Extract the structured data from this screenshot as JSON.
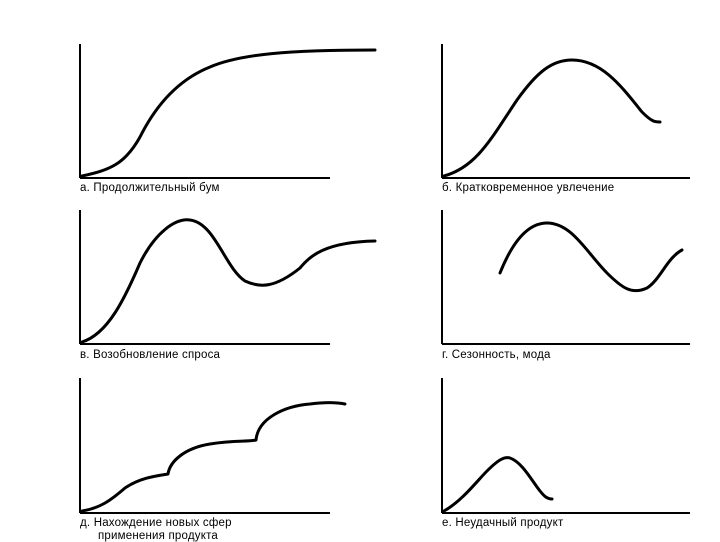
{
  "panels": [
    {
      "id": "a",
      "caption_lines": [
        "а. Продолжительный бум"
      ],
      "shape": "long-boom"
    },
    {
      "id": "b",
      "caption_lines": [
        "б. Кратковременное увлечение"
      ],
      "shape": "short-fad"
    },
    {
      "id": "c",
      "caption_lines": [
        "в. Возобновление спроса"
      ],
      "shape": "renewed-demand"
    },
    {
      "id": "d",
      "caption_lines": [
        "г. Сезонность, мода"
      ],
      "shape": "seasonality"
    },
    {
      "id": "e",
      "caption_lines": [
        "д. Нахождение новых сфер",
        "применения продукта"
      ],
      "shape": "new-applications"
    },
    {
      "id": "f",
      "caption_lines": [
        "е. Неудачный продукт"
      ],
      "shape": "failed-product"
    }
  ],
  "colors": {
    "line": "#000000",
    "background": "#ffffff"
  }
}
